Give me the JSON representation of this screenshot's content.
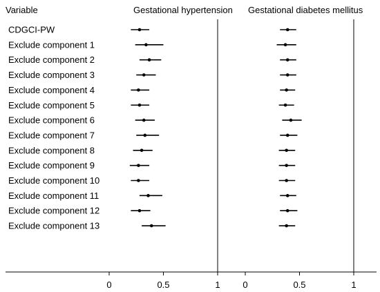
{
  "chart_data": {
    "type": "forest",
    "header": {
      "variable_label": "Variable",
      "panel_titles": [
        "Gestational hypertension",
        "Gestational diabetes mellitus"
      ]
    },
    "rows": [
      "CDGCI-PW",
      "Exclude component 1",
      "Exclude component 2",
      "Exclude component 3",
      "Exclude component 4",
      "Exclude component 5",
      "Exclude component 6",
      "Exclude component 7",
      "Exclude component 8",
      "Exclude component 9",
      "Exclude component 10",
      "Exclude component 11",
      "Exclude component 12",
      "Exclude component 13"
    ],
    "x_ticks": [
      "0",
      "0.5",
      "1"
    ],
    "xlim": [
      0,
      1
    ],
    "reference_line": 1,
    "panels": [
      {
        "title": "Gestational hypertension",
        "points": [
          {
            "est": 0.28,
            "lo": 0.2,
            "hi": 0.37
          },
          {
            "est": 0.34,
            "lo": 0.24,
            "hi": 0.5
          },
          {
            "est": 0.37,
            "lo": 0.28,
            "hi": 0.48
          },
          {
            "est": 0.32,
            "lo": 0.25,
            "hi": 0.43
          },
          {
            "est": 0.27,
            "lo": 0.2,
            "hi": 0.37
          },
          {
            "est": 0.28,
            "lo": 0.2,
            "hi": 0.37
          },
          {
            "est": 0.32,
            "lo": 0.24,
            "hi": 0.42
          },
          {
            "est": 0.33,
            "lo": 0.25,
            "hi": 0.46
          },
          {
            "est": 0.3,
            "lo": 0.22,
            "hi": 0.4
          },
          {
            "est": 0.27,
            "lo": 0.19,
            "hi": 0.37
          },
          {
            "est": 0.27,
            "lo": 0.2,
            "hi": 0.37
          },
          {
            "est": 0.36,
            "lo": 0.28,
            "hi": 0.49
          },
          {
            "est": 0.28,
            "lo": 0.2,
            "hi": 0.38
          },
          {
            "est": 0.39,
            "lo": 0.3,
            "hi": 0.52
          }
        ]
      },
      {
        "title": "Gestational diabetes mellitus",
        "points": [
          {
            "est": 0.39,
            "lo": 0.32,
            "hi": 0.47
          },
          {
            "est": 0.37,
            "lo": 0.29,
            "hi": 0.47
          },
          {
            "est": 0.39,
            "lo": 0.32,
            "hi": 0.47
          },
          {
            "est": 0.39,
            "lo": 0.32,
            "hi": 0.47
          },
          {
            "est": 0.38,
            "lo": 0.32,
            "hi": 0.46
          },
          {
            "est": 0.37,
            "lo": 0.31,
            "hi": 0.45
          },
          {
            "est": 0.42,
            "lo": 0.34,
            "hi": 0.52
          },
          {
            "est": 0.39,
            "lo": 0.32,
            "hi": 0.48
          },
          {
            "est": 0.38,
            "lo": 0.31,
            "hi": 0.46
          },
          {
            "est": 0.38,
            "lo": 0.31,
            "hi": 0.46
          },
          {
            "est": 0.38,
            "lo": 0.31,
            "hi": 0.46
          },
          {
            "est": 0.39,
            "lo": 0.32,
            "hi": 0.47
          },
          {
            "est": 0.39,
            "lo": 0.32,
            "hi": 0.48
          },
          {
            "est": 0.38,
            "lo": 0.31,
            "hi": 0.46
          }
        ]
      }
    ],
    "grid": false,
    "colors": {
      "marks": "#000000",
      "axes": "#000000"
    }
  }
}
